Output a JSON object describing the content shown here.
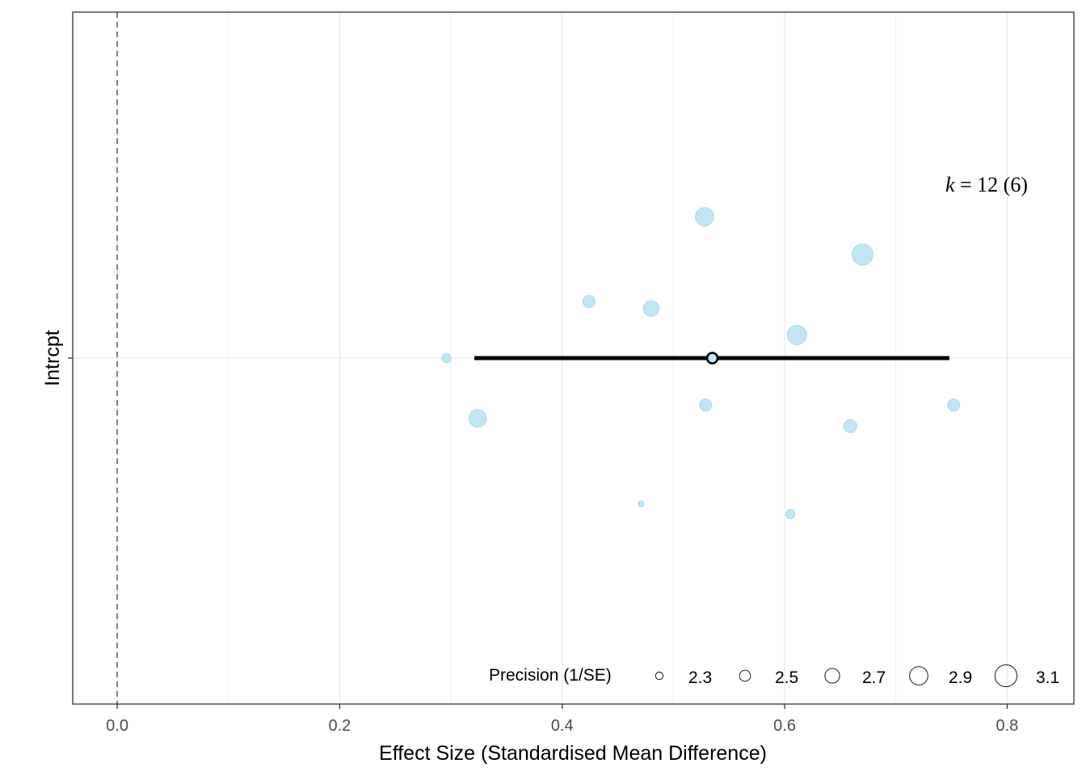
{
  "colors": {
    "point_fill": "#bfe4f6",
    "point_stroke": "#a6d8f0",
    "estimate": "#000000",
    "grid": "#ebebeb",
    "panel_border": "#333333",
    "zero_line": "#666666"
  },
  "chart_data": {
    "type": "scatter",
    "title": "",
    "xlabel": "Effect Size (Standardised Mean Difference)",
    "ylabel": "Intrcpt",
    "xlim": [
      -0.04,
      0.86
    ],
    "x_ticks": [
      0.0,
      0.2,
      0.4,
      0.6,
      0.8
    ],
    "x_tick_labels": [
      "0.0",
      "0.2",
      "0.4",
      "0.6",
      "0.8"
    ],
    "y_categories": [
      "Intrcpt"
    ],
    "grid": true,
    "reference_line_x": 0,
    "points": [
      {
        "x": 0.528,
        "jitter": 0.453,
        "precision": 2.9
      },
      {
        "x": 0.67,
        "jitter": 0.332,
        "precision": 3.05
      },
      {
        "x": 0.424,
        "jitter": 0.181,
        "precision": 2.55
      },
      {
        "x": 0.48,
        "jitter": 0.159,
        "precision": 2.75
      },
      {
        "x": 0.611,
        "jitter": 0.074,
        "precision": 2.95
      },
      {
        "x": 0.296,
        "jitter": 0.0,
        "precision": 2.4
      },
      {
        "x": 0.324,
        "jitter": -0.193,
        "precision": 2.85
      },
      {
        "x": 0.529,
        "jitter": -0.151,
        "precision": 2.55
      },
      {
        "x": 0.752,
        "jitter": -0.151,
        "precision": 2.55
      },
      {
        "x": 0.659,
        "jitter": -0.218,
        "precision": 2.6
      },
      {
        "x": 0.471,
        "jitter": -0.467,
        "precision": 2.2
      },
      {
        "x": 0.605,
        "jitter": -0.5,
        "precision": 2.4
      }
    ],
    "estimate": {
      "x": 0.535,
      "ci_low": 0.321,
      "ci_high": 0.748
    },
    "annotation": {
      "italic": "k",
      "text": " = 12 (6)"
    },
    "size_legend": {
      "title": "Precision (1/SE)",
      "values": [
        2.3,
        2.5,
        2.7,
        2.9,
        3.1
      ],
      "labels": [
        "2.3",
        "2.5",
        "2.7",
        "2.9",
        "3.1"
      ],
      "position": "bottom-right"
    }
  }
}
